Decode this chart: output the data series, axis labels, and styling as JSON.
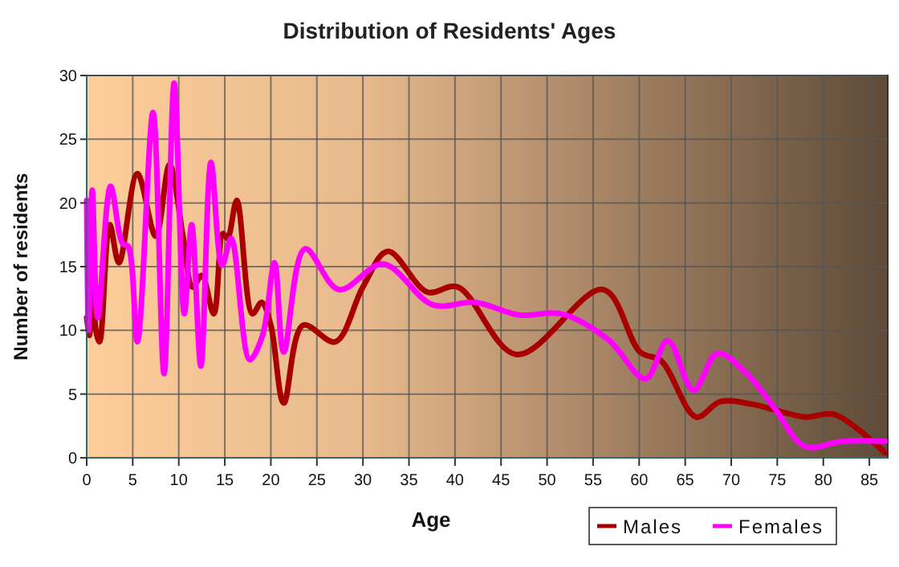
{
  "chart_data": {
    "type": "line",
    "title": "Distribution of Residents' Ages",
    "xlabel": "Age",
    "ylabel": "Number of residents",
    "xlim": [
      0,
      87
    ],
    "xticks": [
      0,
      5,
      10,
      15,
      20,
      25,
      30,
      35,
      40,
      45,
      50,
      55,
      60,
      65,
      70,
      75,
      80,
      85
    ],
    "ylim": [
      0,
      30
    ],
    "yticks": [
      0,
      5,
      10,
      15,
      20,
      25,
      30
    ],
    "grid": true,
    "legend": "bottom right",
    "line_style": "solid",
    "marker": "none",
    "series": [
      {
        "name": "Males",
        "color": "#a80000",
        "x": [
          0,
          0.3,
          0.5,
          1,
          1.4,
          2.5,
          3.5,
          5.5,
          7.5,
          9,
          10.5,
          11.5,
          12.5,
          13.8,
          14.8,
          15.3,
          16.3,
          18,
          19,
          20,
          21.4,
          23.5,
          27,
          30,
          32.7,
          37,
          40.3,
          46.7,
          56.1,
          60.1,
          62.4,
          66.2,
          68.8,
          72.3,
          78,
          81.2,
          86.7
        ],
        "values": [
          11,
          9.6,
          17.7,
          10,
          9.1,
          18.3,
          15.3,
          22.3,
          17.4,
          23,
          17.2,
          13.4,
          14.3,
          11.3,
          17.6,
          17.2,
          20.2,
          11.3,
          12.2,
          10.4,
          4.3,
          10.4,
          9.1,
          13.4,
          16.2,
          13,
          13.4,
          8.1,
          13.2,
          8.3,
          7.6,
          3.2,
          4.4,
          4.2,
          3.2,
          3.4,
          0.4
        ]
      },
      {
        "name": "Females",
        "color": "#ff00ff",
        "x": [
          0,
          0.2,
          0.6,
          1.2,
          2.6,
          3.9,
          4.5,
          5.5,
          7.2,
          8.4,
          9.5,
          10.6,
          11.4,
          12.4,
          13.5,
          14.7,
          15.7,
          17.7,
          19.1,
          20.4,
          21.4,
          23.7,
          27.4,
          32.2,
          37.6,
          42.2,
          47,
          51.5,
          56.6,
          60.7,
          63.1,
          65.9,
          68.5,
          71.7,
          74.6,
          78,
          82.1,
          86.7
        ],
        "values": [
          20.2,
          10,
          21,
          11,
          21.3,
          16.8,
          16.6,
          9.1,
          27.1,
          6.6,
          29.4,
          11.3,
          18.3,
          7.2,
          23.2,
          15.1,
          17.2,
          7.7,
          9.6,
          15.3,
          8.3,
          16.4,
          13.2,
          15.2,
          12,
          12.2,
          11.2,
          11.3,
          9.3,
          6.2,
          9.2,
          5.3,
          8.2,
          6.6,
          4,
          0.9,
          1.3,
          1.3
        ]
      }
    ]
  }
}
